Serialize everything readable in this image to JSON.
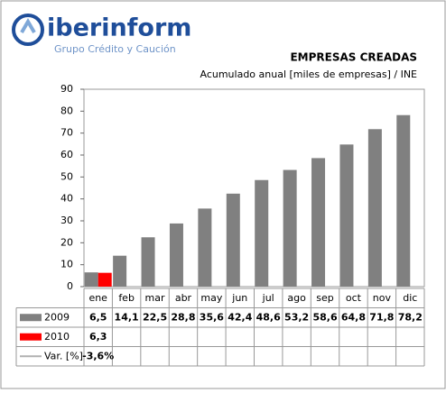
{
  "logo": {
    "name": "iberinform",
    "tagline": "Grupo Crédito y Caución"
  },
  "chart_data": {
    "type": "bar",
    "title": "EMPRESAS CREADAS",
    "subtitle": "Acumulado anual [miles de empresas] / INE",
    "categories": [
      "ene",
      "feb",
      "mar",
      "abr",
      "may",
      "jun",
      "jul",
      "ago",
      "sep",
      "oct",
      "nov",
      "dic"
    ],
    "series": [
      {
        "name": "2009",
        "color": "#808080",
        "values": [
          6.5,
          14.1,
          22.5,
          28.8,
          35.6,
          42.4,
          48.6,
          53.2,
          58.6,
          64.8,
          71.8,
          78.2
        ],
        "value_labels": [
          "6,5",
          "14,1",
          "22,5",
          "28,8",
          "35,6",
          "42,4",
          "48,6",
          "53,2",
          "58,6",
          "64,8",
          "71,8",
          "78,2"
        ]
      },
      {
        "name": "2010",
        "color": "#ff0000",
        "values": [
          6.3,
          null,
          null,
          null,
          null,
          null,
          null,
          null,
          null,
          null,
          null,
          null
        ],
        "value_labels": [
          "6,3",
          null,
          null,
          null,
          null,
          null,
          null,
          null,
          null,
          null,
          null,
          null
        ]
      },
      {
        "name": "Var. [%]",
        "color": "#b0b0b0",
        "type": "line",
        "values": [
          -3.6,
          null,
          null,
          null,
          null,
          null,
          null,
          null,
          null,
          null,
          null,
          null
        ],
        "value_labels": [
          "-3,6%",
          null,
          null,
          null,
          null,
          null,
          null,
          null,
          null,
          null,
          null,
          null
        ]
      }
    ],
    "ylim": [
      0,
      90
    ],
    "yticks": [
      0,
      10,
      20,
      30,
      40,
      50,
      60,
      70,
      80,
      90
    ],
    "grid": false
  }
}
